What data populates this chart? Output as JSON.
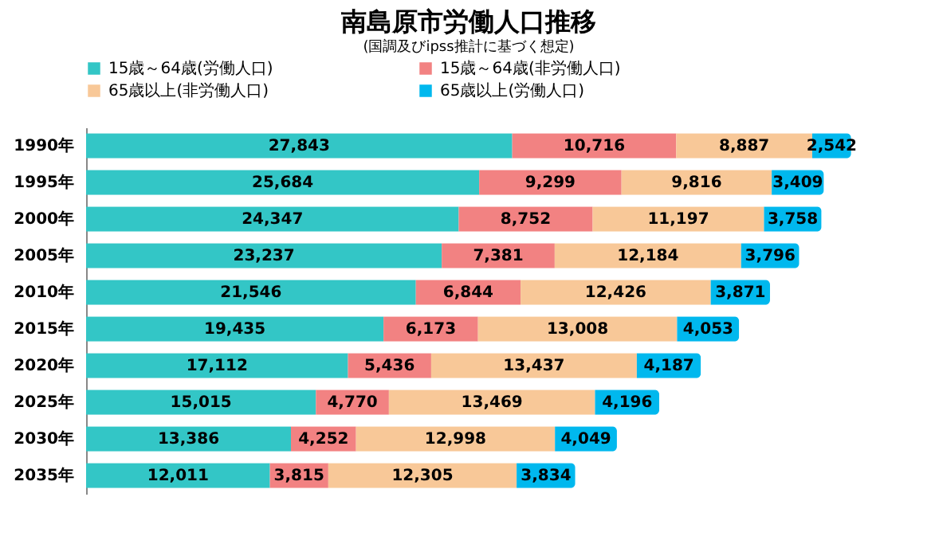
{
  "chart_data": {
    "type": "bar",
    "orientation": "horizontal",
    "stacked": true,
    "legend": "top",
    "title": "南島原市労働人口推移",
    "subtitle": "(国調及びipss推計に基づく想定)",
    "categories": [
      "1990年",
      "1995年",
      "2000年",
      "2005年",
      "2010年",
      "2015年",
      "2020年",
      "2025年",
      "2030年",
      "2035年"
    ],
    "series": [
      {
        "name": "15歳～64歳(労働人口)",
        "color": "#33c6c6",
        "values": [
          27843,
          25684,
          24347,
          23237,
          21546,
          19435,
          17112,
          15015,
          13386,
          12011
        ],
        "value_labels": [
          "27,843",
          "25,684",
          "24,347",
          "23,237",
          "21,546",
          "19,435",
          "17,112",
          "15,015",
          "13,386",
          "12,011"
        ]
      },
      {
        "name": "15歳～64歳(非労働人口)",
        "color": "#f28282",
        "values": [
          10716,
          9299,
          8752,
          7381,
          6844,
          6173,
          5436,
          4770,
          4252,
          3815
        ],
        "value_labels": [
          "10,716",
          "9,299",
          "8,752",
          "7,381",
          "6,844",
          "6,173",
          "5,436",
          "4,770",
          "4,252",
          "3,815"
        ]
      },
      {
        "name": "65歳以上(非労働人口)",
        "color": "#f8c898",
        "values": [
          8887,
          9816,
          11197,
          12184,
          12426,
          13008,
          13437,
          13469,
          12998,
          12305
        ],
        "value_labels": [
          "8,887",
          "9,816",
          "11,197",
          "12,184",
          "12,426",
          "13,008",
          "13,437",
          "13,469",
          "12,998",
          "12,305"
        ]
      },
      {
        "name": "65歳以上(労働人口)",
        "color": "#00b8ee",
        "values": [
          2542,
          3409,
          3758,
          3796,
          3871,
          4053,
          4187,
          4196,
          4049,
          3834
        ],
        "value_labels": [
          "2,542",
          "3,409",
          "3,758",
          "3,796",
          "3,871",
          "4,053",
          "4,187",
          "4,196",
          "4,049",
          "3,834"
        ]
      }
    ]
  }
}
